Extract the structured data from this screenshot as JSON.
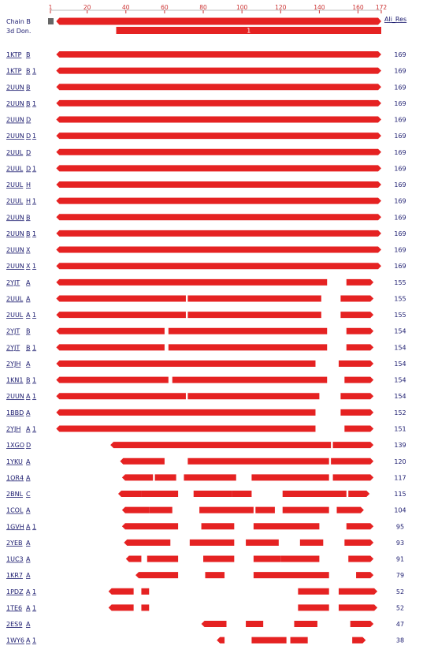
{
  "header": {
    "chain_label": "Chain B",
    "donor_label": "3d Don.",
    "ali_res_label": "Ali_Res",
    "donor_number": "1"
  },
  "axis": {
    "min": 1,
    "max": 172,
    "ticks": [
      1,
      20,
      40,
      60,
      80,
      100,
      120,
      140,
      160,
      172
    ]
  },
  "colors": {
    "bar": "#e52222",
    "link": "#1a1a6e",
    "tick": "#cc3333",
    "marker": "#666666"
  },
  "query_bar": {
    "start": 4,
    "end": 172
  },
  "donor_bar": {
    "start": 35,
    "end": 172
  },
  "rows": [
    {
      "pdb": "1KTP",
      "chain": "B",
      "copy": "",
      "ali_res": 169,
      "segs": [
        [
          4,
          172
        ]
      ]
    },
    {
      "pdb": "1KTP",
      "chain": "B",
      "copy": "1",
      "ali_res": 169,
      "segs": [
        [
          4,
          172
        ]
      ]
    },
    {
      "pdb": "2UUN",
      "chain": "B",
      "copy": "",
      "ali_res": 169,
      "segs": [
        [
          4,
          172
        ]
      ]
    },
    {
      "pdb": "2UUN",
      "chain": "B",
      "copy": "1",
      "ali_res": 169,
      "segs": [
        [
          4,
          172
        ]
      ]
    },
    {
      "pdb": "2UUN",
      "chain": "D",
      "copy": "",
      "ali_res": 169,
      "segs": [
        [
          4,
          172
        ]
      ]
    },
    {
      "pdb": "2UUN",
      "chain": "D",
      "copy": "1",
      "ali_res": 169,
      "segs": [
        [
          4,
          172
        ]
      ]
    },
    {
      "pdb": "2UUL",
      "chain": "D",
      "copy": "",
      "ali_res": 169,
      "segs": [
        [
          4,
          172
        ]
      ]
    },
    {
      "pdb": "2UUL",
      "chain": "D",
      "copy": "1",
      "ali_res": 169,
      "segs": [
        [
          4,
          172
        ]
      ]
    },
    {
      "pdb": "2UUL",
      "chain": "H",
      "copy": "",
      "ali_res": 169,
      "segs": [
        [
          4,
          172
        ]
      ]
    },
    {
      "pdb": "2UUL",
      "chain": "H",
      "copy": "1",
      "ali_res": 169,
      "segs": [
        [
          4,
          172
        ]
      ]
    },
    {
      "pdb": "2UUN",
      "chain": "B",
      "copy": "",
      "ali_res": 169,
      "segs": [
        [
          4,
          172
        ]
      ]
    },
    {
      "pdb": "2UUN",
      "chain": "B",
      "copy": "1",
      "ali_res": 169,
      "segs": [
        [
          4,
          172
        ]
      ]
    },
    {
      "pdb": "2UUN",
      "chain": "X",
      "copy": "",
      "ali_res": 169,
      "segs": [
        [
          4,
          172
        ]
      ]
    },
    {
      "pdb": "2UUN",
      "chain": "X",
      "copy": "1",
      "ali_res": 169,
      "segs": [
        [
          4,
          172
        ]
      ]
    },
    {
      "pdb": "2YJT",
      "chain": "A",
      "copy": "",
      "ali_res": 155,
      "segs": [
        [
          4,
          144
        ],
        [
          154,
          168
        ]
      ]
    },
    {
      "pdb": "2UUL",
      "chain": "A",
      "copy": "",
      "ali_res": 155,
      "segs": [
        [
          4,
          71
        ],
        [
          72,
          141
        ],
        [
          151,
          168
        ]
      ]
    },
    {
      "pdb": "2UUL",
      "chain": "A",
      "copy": "1",
      "ali_res": 155,
      "segs": [
        [
          4,
          71
        ],
        [
          72,
          141
        ],
        [
          151,
          168
        ]
      ]
    },
    {
      "pdb": "2YJT",
      "chain": "B",
      "copy": "",
      "ali_res": 154,
      "segs": [
        [
          4,
          60
        ],
        [
          62,
          144
        ],
        [
          154,
          168
        ]
      ]
    },
    {
      "pdb": "2YJT",
      "chain": "B",
      "copy": "1",
      "ali_res": 154,
      "segs": [
        [
          4,
          60
        ],
        [
          62,
          144
        ],
        [
          154,
          168
        ]
      ]
    },
    {
      "pdb": "2YJH",
      "chain": "A",
      "copy": "",
      "ali_res": 154,
      "segs": [
        [
          4,
          138
        ],
        [
          150,
          168
        ]
      ]
    },
    {
      "pdb": "1KN1",
      "chain": "B",
      "copy": "1",
      "ali_res": 154,
      "segs": [
        [
          4,
          62
        ],
        [
          64,
          144
        ],
        [
          153,
          168
        ]
      ]
    },
    {
      "pdb": "2UUN",
      "chain": "A",
      "copy": "1",
      "ali_res": 154,
      "segs": [
        [
          4,
          71
        ],
        [
          72,
          140
        ],
        [
          151,
          168
        ]
      ]
    },
    {
      "pdb": "1BBD",
      "chain": "A",
      "copy": "",
      "ali_res": 152,
      "segs": [
        [
          4,
          138
        ],
        [
          151,
          168
        ]
      ]
    },
    {
      "pdb": "2YJH",
      "chain": "A",
      "copy": "1",
      "ali_res": 151,
      "segs": [
        [
          4,
          138
        ],
        [
          153,
          168
        ]
      ]
    },
    {
      "pdb": "1XGO",
      "chain": "D",
      "copy": "",
      "ali_res": 139,
      "segs": [
        [
          32,
          146
        ],
        [
          147,
          168
        ]
      ]
    },
    {
      "pdb": "1YKU",
      "chain": "A",
      "copy": "",
      "ali_res": 120,
      "segs": [
        [
          37,
          60
        ],
        [
          72,
          145
        ],
        [
          146,
          168
        ]
      ]
    },
    {
      "pdb": "1OR4",
      "chain": "A",
      "copy": "",
      "ali_res": 117,
      "segs": [
        [
          38,
          54
        ],
        [
          55,
          66
        ],
        [
          70,
          97
        ],
        [
          105,
          145
        ],
        [
          147,
          168
        ]
      ]
    },
    {
      "pdb": "2BNL",
      "chain": "C",
      "copy": "",
      "ali_res": 115,
      "segs": [
        [
          36,
          48
        ],
        [
          48,
          67
        ],
        [
          75,
          95
        ],
        [
          95,
          105
        ],
        [
          121,
          154
        ],
        [
          155,
          166
        ]
      ]
    },
    {
      "pdb": "1COL",
      "chain": "A",
      "copy": "",
      "ali_res": 104,
      "segs": [
        [
          38,
          52
        ],
        [
          52,
          64
        ],
        [
          78,
          106
        ],
        [
          107,
          117
        ],
        [
          121,
          145
        ],
        [
          149,
          163
        ]
      ]
    },
    {
      "pdb": "1GVH",
      "chain": "A",
      "copy": "1",
      "ali_res": 95,
      "segs": [
        [
          38,
          67
        ],
        [
          79,
          96
        ],
        [
          106,
          140
        ],
        [
          154,
          168
        ]
      ]
    },
    {
      "pdb": "2YEB",
      "chain": "A",
      "copy": "",
      "ali_res": 93,
      "segs": [
        [
          39,
          63
        ],
        [
          73,
          96
        ],
        [
          102,
          119
        ],
        [
          130,
          142
        ],
        [
          153,
          168
        ]
      ]
    },
    {
      "pdb": "1UC3",
      "chain": "A",
      "copy": "",
      "ali_res": 91,
      "segs": [
        [
          40,
          48
        ],
        [
          51,
          67
        ],
        [
          80,
          96
        ],
        [
          106,
          120
        ],
        [
          120,
          140
        ],
        [
          155,
          168
        ]
      ]
    },
    {
      "pdb": "1KR7",
      "chain": "A",
      "copy": "",
      "ali_res": 79,
      "segs": [
        [
          45,
          67
        ],
        [
          81,
          91
        ],
        [
          106,
          145
        ],
        [
          159,
          168
        ]
      ]
    },
    {
      "pdb": "1PDZ",
      "chain": "A",
      "copy": "1",
      "ali_res": 52,
      "segs": [
        [
          31,
          44
        ],
        [
          48,
          52
        ],
        [
          129,
          145
        ],
        [
          150,
          170
        ]
      ]
    },
    {
      "pdb": "1TE6",
      "chain": "A",
      "copy": "1",
      "ali_res": 52,
      "segs": [
        [
          31,
          44
        ],
        [
          48,
          52
        ],
        [
          129,
          145
        ],
        [
          150,
          170
        ]
      ]
    },
    {
      "pdb": "2ES9",
      "chain": "A",
      "copy": "",
      "ali_res": 47,
      "segs": [
        [
          79,
          92
        ],
        [
          102,
          111
        ],
        [
          127,
          139
        ],
        [
          156,
          168
        ]
      ]
    },
    {
      "pdb": "1WY6",
      "chain": "A",
      "copy": "1",
      "ali_res": 38,
      "segs": [
        [
          87,
          91
        ],
        [
          105,
          123
        ],
        [
          125,
          134
        ],
        [
          157,
          164
        ]
      ]
    }
  ]
}
